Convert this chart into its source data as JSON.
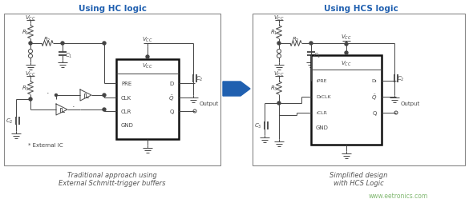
{
  "title_left": "Using HC logic",
  "title_right": "Using HCS logic",
  "caption_left_1": "Traditional approach using",
  "caption_left_2": "External Schmitt-trigger buffers",
  "caption_right_1": "Simplified design",
  "caption_right_2": "with HCS Logic",
  "watermark": "www.eetronics.com",
  "title_color": "#2060B0",
  "caption_color": "#555555",
  "watermark_color": "#80B870",
  "line_color": "#444444",
  "arrow_color": "#2060B0",
  "bg_color": "#FFFFFF",
  "panel_border": "#888888",
  "ic_border": "#111111",
  "lw_thin": 0.7,
  "lw_ic": 1.8,
  "lw_panel": 0.8
}
